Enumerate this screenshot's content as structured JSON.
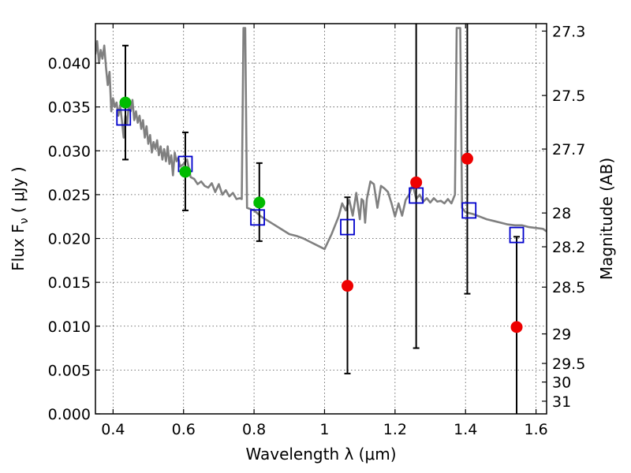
{
  "chart_data": {
    "type": "scatter",
    "xlabel": "Wavelength  λ (μm)",
    "ylabel": "Flux  F",
    "ylabel_sub": "ν",
    "ylabel_unit": "  ( μJy )",
    "ylabel_right": "Magnitude (AB)",
    "xlim": [
      0.35,
      1.63
    ],
    "ylim": [
      0.0,
      0.0445
    ],
    "grid": true,
    "x_ticks": [
      0.4,
      0.6,
      0.8,
      1.0,
      1.2,
      1.4,
      1.6
    ],
    "x_tick_labels": [
      "0.4",
      "0.6",
      "0.8",
      "1",
      "1.2",
      "1.4",
      "1.6"
    ],
    "y_ticks": [
      0.0,
      0.005,
      0.01,
      0.015,
      0.02,
      0.025,
      0.03,
      0.035,
      0.04
    ],
    "y_tick_labels": [
      "0.000",
      "0.005",
      "0.010",
      "0.015",
      "0.020",
      "0.025",
      "0.030",
      "0.035",
      "0.040"
    ],
    "mag_ticks": [
      27.3,
      27.5,
      27.7,
      28,
      28.2,
      28.5,
      29,
      29.5,
      30,
      31
    ],
    "mag_tick_labels": [
      "27.3",
      "27.5",
      "27.7",
      "28",
      "28.2",
      "28.5",
      "29",
      "29.5",
      "30",
      "31"
    ],
    "colors": {
      "template": "#808080",
      "model": "#0000cc",
      "detection": "#00bb00",
      "nondetection": "#ee0000",
      "errorbar": "#000000"
    },
    "template_spectrum": {
      "x": [
        0.35,
        0.355,
        0.36,
        0.365,
        0.37,
        0.375,
        0.38,
        0.385,
        0.39,
        0.395,
        0.4,
        0.405,
        0.41,
        0.415,
        0.42,
        0.425,
        0.43,
        0.435,
        0.44,
        0.445,
        0.45,
        0.455,
        0.46,
        0.465,
        0.47,
        0.475,
        0.48,
        0.485,
        0.49,
        0.495,
        0.5,
        0.505,
        0.51,
        0.515,
        0.52,
        0.525,
        0.53,
        0.535,
        0.54,
        0.545,
        0.55,
        0.555,
        0.56,
        0.565,
        0.57,
        0.575,
        0.58,
        0.585,
        0.59,
        0.6,
        0.61,
        0.62,
        0.63,
        0.64,
        0.65,
        0.66,
        0.67,
        0.68,
        0.69,
        0.7,
        0.71,
        0.72,
        0.73,
        0.74,
        0.75,
        0.76,
        0.765,
        0.77,
        0.775,
        0.78,
        0.8,
        0.82,
        0.84,
        0.86,
        0.88,
        0.9,
        0.92,
        0.94,
        0.96,
        0.98,
        1.0,
        1.02,
        1.04,
        1.05,
        1.06,
        1.07,
        1.08,
        1.09,
        1.1,
        1.105,
        1.11,
        1.115,
        1.12,
        1.13,
        1.14,
        1.15,
        1.16,
        1.17,
        1.18,
        1.19,
        1.2,
        1.21,
        1.22,
        1.23,
        1.24,
        1.25,
        1.26,
        1.27,
        1.28,
        1.29,
        1.3,
        1.31,
        1.32,
        1.33,
        1.34,
        1.35,
        1.36,
        1.37,
        1.375,
        1.38,
        1.385,
        1.39,
        1.4,
        1.42,
        1.44,
        1.46,
        1.48,
        1.5,
        1.52,
        1.54,
        1.56,
        1.58,
        1.6,
        1.62,
        1.63
      ],
      "y": [
        0.041,
        0.0425,
        0.04,
        0.0415,
        0.0405,
        0.042,
        0.0395,
        0.0375,
        0.039,
        0.0345,
        0.036,
        0.035,
        0.0355,
        0.034,
        0.0352,
        0.0335,
        0.0315,
        0.034,
        0.033,
        0.0355,
        0.0345,
        0.0358,
        0.0335,
        0.0345,
        0.0332,
        0.034,
        0.0325,
        0.0335,
        0.0315,
        0.0328,
        0.0308,
        0.0318,
        0.0298,
        0.031,
        0.0302,
        0.0312,
        0.0295,
        0.0305,
        0.029,
        0.0302,
        0.0288,
        0.0305,
        0.0285,
        0.0295,
        0.0272,
        0.0298,
        0.0288,
        0.0292,
        0.0282,
        0.0285,
        0.029,
        0.027,
        0.0268,
        0.0262,
        0.0265,
        0.026,
        0.0258,
        0.0263,
        0.0253,
        0.0262,
        0.025,
        0.0255,
        0.0248,
        0.0252,
        0.0245,
        0.0246,
        0.0245,
        0.044,
        0.044,
        0.0235,
        0.0232,
        0.0225,
        0.022,
        0.0215,
        0.021,
        0.0205,
        0.0203,
        0.02,
        0.0196,
        0.0192,
        0.0188,
        0.0205,
        0.0225,
        0.024,
        0.0232,
        0.0244,
        0.0226,
        0.0252,
        0.0222,
        0.0245,
        0.0243,
        0.0218,
        0.0245,
        0.0265,
        0.0262,
        0.0235,
        0.026,
        0.0257,
        0.0253,
        0.024,
        0.0225,
        0.024,
        0.0226,
        0.0244,
        0.025,
        0.0262,
        0.0245,
        0.025,
        0.0242,
        0.0246,
        0.0241,
        0.0246,
        0.0242,
        0.0243,
        0.024,
        0.0245,
        0.024,
        0.025,
        0.044,
        0.044,
        0.044,
        0.0235,
        0.023,
        0.0228,
        0.0225,
        0.0222,
        0.022,
        0.0218,
        0.0216,
        0.0215,
        0.0215,
        0.0213,
        0.0212,
        0.0211,
        0.0208
      ]
    },
    "series": [
      {
        "marker": "square",
        "x": [
          0.43,
          0.605,
          0.81,
          1.065,
          1.26,
          1.41,
          1.545
        ],
        "values": [
          0.0338,
          0.0285,
          0.0224,
          0.0213,
          0.0249,
          0.0232,
          0.0204
        ]
      },
      {
        "marker": "circle-green",
        "x": [
          0.435,
          0.605,
          0.815
        ],
        "values": [
          0.0355,
          0.0276,
          0.0241
        ],
        "yerr_low": [
          0.029,
          0.0232,
          0.0197
        ],
        "yerr_high": [
          0.042,
          0.0321,
          0.0286
        ]
      },
      {
        "marker": "circle-red",
        "x": [
          1.065,
          1.26,
          1.405,
          1.545
        ],
        "values": [
          0.0146,
          0.0264,
          0.0291,
          0.0099
        ],
        "yerr_low": [
          0.0046,
          0.0075,
          0.0137,
          0.0
        ],
        "yerr_high": [
          0.0247,
          0.0445,
          0.0445,
          0.0202
        ]
      }
    ]
  }
}
